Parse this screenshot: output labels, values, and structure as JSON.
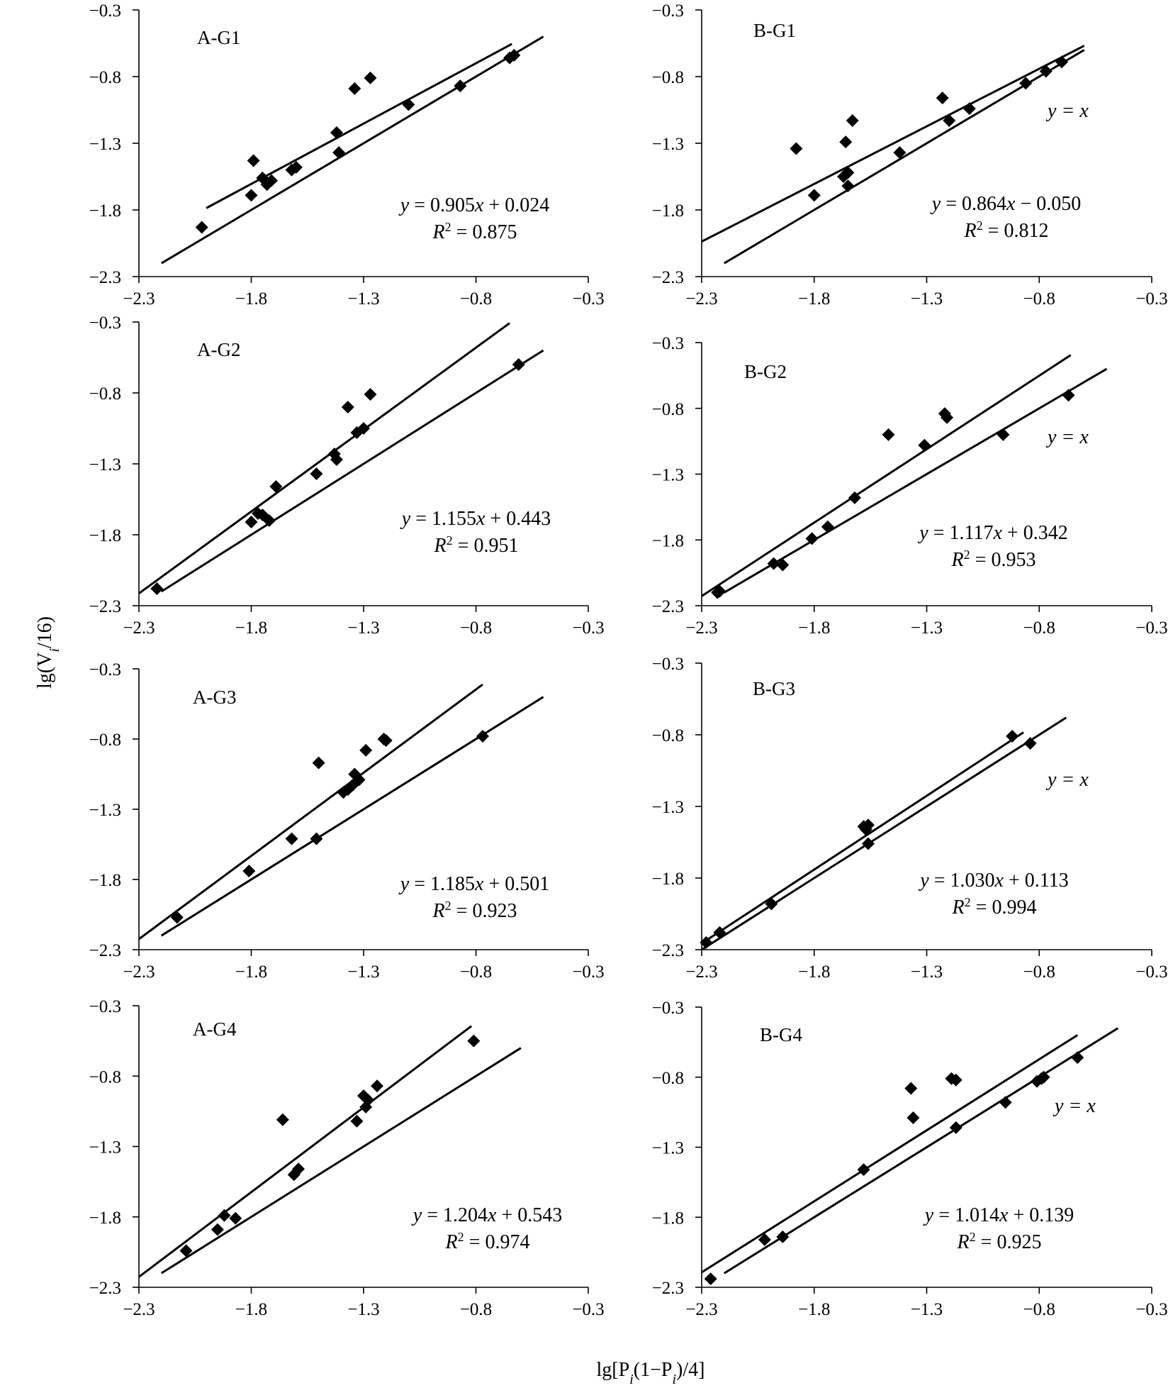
{
  "figure": {
    "ylabel": "lg(V_i/16)",
    "xlabel": "lg[P_i(1−P_i)/4]"
  },
  "chart_data": [
    {
      "type": "scatter",
      "title": "A-G1",
      "xlim": [
        -2.3,
        -0.3
      ],
      "ylim": [
        -2.3,
        -0.3
      ],
      "xticks": [
        "−2.3",
        "−1.8",
        "−1.3",
        "−0.8",
        "−0.3"
      ],
      "yticks": [
        "−0.3",
        "−0.8",
        "−1.3",
        "−1.8",
        "−2.3"
      ],
      "equation": {
        "y": "y",
        "eq": " = 0.905",
        "x": "x",
        "rest": " + 0.024",
        "r2_label": "R",
        "r2_sup": "2",
        "r2_value": " = 0.875"
      },
      "identity_label": "",
      "fit": {
        "slope": 0.905,
        "intercept": 0.024,
        "x_range": [
          -2.0,
          -0.64
        ]
      },
      "identity": {
        "x_range": [
          -2.2,
          -0.5
        ]
      },
      "points": [
        [
          -2.02,
          -1.93
        ],
        [
          -1.8,
          -1.69
        ],
        [
          -1.79,
          -1.43
        ],
        [
          -1.75,
          -1.56
        ],
        [
          -1.73,
          -1.61
        ],
        [
          -1.71,
          -1.58
        ],
        [
          -1.62,
          -1.5
        ],
        [
          -1.6,
          -1.48
        ],
        [
          -1.42,
          -1.22
        ],
        [
          -1.41,
          -1.37
        ],
        [
          -1.34,
          -0.89
        ],
        [
          -1.27,
          -0.81
        ],
        [
          -1.1,
          -1.01
        ],
        [
          -0.87,
          -0.87
        ],
        [
          -0.65,
          -0.66
        ],
        [
          -0.63,
          -0.64
        ]
      ]
    },
    {
      "type": "scatter",
      "title": "B-G1",
      "xlim": [
        -2.3,
        -0.3
      ],
      "ylim": [
        -2.3,
        -0.3
      ],
      "xticks": [
        "−2.3",
        "−1.8",
        "−1.3",
        "−0.8",
        "−0.3"
      ],
      "yticks": [
        "−0.3",
        "−0.8",
        "−1.3",
        "−1.8",
        "−2.3"
      ],
      "equation": {
        "y": "y",
        "eq": " = 0.864",
        "x": "x",
        "rest": " − 0.050",
        "r2_label": "R",
        "r2_sup": "2",
        "r2_value": " = 0.812"
      },
      "identity_label": "y =  x",
      "fit": {
        "slope": 0.864,
        "intercept": -0.05,
        "x_range": [
          -2.3,
          -0.6
        ]
      },
      "identity": {
        "x_range": [
          -2.2,
          -0.6
        ]
      },
      "points": [
        [
          -1.88,
          -1.34
        ],
        [
          -1.8,
          -1.69
        ],
        [
          -1.67,
          -1.55
        ],
        [
          -1.66,
          -1.29
        ],
        [
          -1.65,
          -1.52
        ],
        [
          -1.65,
          -1.62
        ],
        [
          -1.63,
          -1.13
        ],
        [
          -1.42,
          -1.37
        ],
        [
          -1.23,
          -0.96
        ],
        [
          -1.2,
          -1.13
        ],
        [
          -1.11,
          -1.04
        ],
        [
          -0.86,
          -0.85
        ],
        [
          -0.77,
          -0.76
        ],
        [
          -0.7,
          -0.69
        ]
      ]
    },
    {
      "type": "scatter",
      "title": "A-G2",
      "xlim": [
        -2.3,
        -0.3
      ],
      "ylim": [
        -2.3,
        -0.3
      ],
      "xticks": [
        "−2.3",
        "−1.8",
        "−1.3",
        "−0.8",
        "−0.3"
      ],
      "yticks": [
        "−0.3",
        "−0.8",
        "−1.3",
        "−1.8",
        "−2.3"
      ],
      "equation": {
        "y": "y",
        "eq": " = 1.155",
        "x": "x",
        "rest": " + 0.443",
        "r2_label": "R",
        "r2_sup": "2",
        "r2_value": " = 0.951"
      },
      "identity_label": "",
      "fit": {
        "slope": 1.155,
        "intercept": 0.443,
        "x_range": [
          -2.3,
          -0.65
        ]
      },
      "identity": {
        "x_range": [
          -2.2,
          -0.5
        ]
      },
      "points": [
        [
          -2.22,
          -2.18
        ],
        [
          -1.8,
          -1.71
        ],
        [
          -1.77,
          -1.65
        ],
        [
          -1.75,
          -1.66
        ],
        [
          -1.72,
          -1.7
        ],
        [
          -1.69,
          -1.46
        ],
        [
          -1.51,
          -1.37
        ],
        [
          -1.43,
          -1.23
        ],
        [
          -1.42,
          -1.27
        ],
        [
          -1.37,
          -0.9
        ],
        [
          -1.33,
          -1.08
        ],
        [
          -1.3,
          -1.05
        ],
        [
          -1.27,
          -0.81
        ],
        [
          -0.61,
          -0.6
        ]
      ]
    },
    {
      "type": "scatter",
      "title": "B-G2",
      "xlim": [
        -2.3,
        -0.3
      ],
      "ylim": [
        -2.3,
        -0.3
      ],
      "xticks": [
        "−2.3",
        "−1.8",
        "−1.3",
        "−0.8",
        "−0.3"
      ],
      "yticks": [
        "−0.3",
        "−0.8",
        "−1.3",
        "−1.8",
        "−2.3"
      ],
      "equation": {
        "y": "y",
        "eq": " = 1.117",
        "x": "x",
        "rest": " + 0.342",
        "r2_label": "R",
        "r2_sup": "2",
        "r2_value": " = 0.953"
      },
      "identity_label": "y =  x",
      "fit": {
        "slope": 1.117,
        "intercept": 0.342,
        "x_range": [
          -2.3,
          -0.66
        ]
      },
      "identity": {
        "x_range": [
          -2.2,
          -0.5
        ]
      },
      "points": [
        [
          -2.23,
          -2.2
        ],
        [
          -2.22,
          -2.19
        ],
        [
          -1.98,
          -1.98
        ],
        [
          -1.94,
          -1.99
        ],
        [
          -1.81,
          -1.79
        ],
        [
          -1.74,
          -1.7
        ],
        [
          -1.62,
          -1.48
        ],
        [
          -1.47,
          -1.0
        ],
        [
          -1.31,
          -1.08
        ],
        [
          -1.22,
          -0.84
        ],
        [
          -1.21,
          -0.87
        ],
        [
          -0.96,
          -1.0
        ],
        [
          -0.67,
          -0.7
        ]
      ]
    },
    {
      "type": "scatter",
      "title": "A-G3",
      "xlim": [
        -2.3,
        -0.3
      ],
      "ylim": [
        -2.3,
        -0.3
      ],
      "xticks": [
        "−2.3",
        "−1.8",
        "−1.3",
        "−0.8",
        "−0.3"
      ],
      "yticks": [
        "−0.3",
        "−0.8",
        "−1.3",
        "−1.8",
        "−2.3"
      ],
      "equation": {
        "y": "y",
        "eq": " = 1.185",
        "x": "x",
        "rest": " + 0.501",
        "r2_label": "R",
        "r2_sup": "2",
        "r2_value": " = 0.923"
      },
      "identity_label": "",
      "fit": {
        "slope": 1.185,
        "intercept": 0.501,
        "x_range": [
          -2.3,
          -0.77
        ]
      },
      "identity": {
        "x_range": [
          -2.2,
          -0.5
        ]
      },
      "points": [
        [
          -2.13,
          -2.07
        ],
        [
          -1.81,
          -1.74
        ],
        [
          -1.62,
          -1.51
        ],
        [
          -1.51,
          -1.51
        ],
        [
          -1.5,
          -0.97
        ],
        [
          -1.39,
          -1.18
        ],
        [
          -1.37,
          -1.16
        ],
        [
          -1.35,
          -1.13
        ],
        [
          -1.34,
          -1.05
        ],
        [
          -1.32,
          -1.09
        ],
        [
          -1.29,
          -0.88
        ],
        [
          -1.21,
          -0.8
        ],
        [
          -1.2,
          -0.81
        ],
        [
          -0.77,
          -0.78
        ]
      ]
    },
    {
      "type": "scatter",
      "title": "B-G3",
      "xlim": [
        -2.3,
        -0.3
      ],
      "ylim": [
        -2.3,
        -0.3
      ],
      "xticks": [
        "−2.3",
        "−1.8",
        "−1.3",
        "−0.8",
        "−0.3"
      ],
      "yticks": [
        "−0.3",
        "−0.8",
        "−1.3",
        "−1.8",
        "−2.3"
      ],
      "equation": {
        "y": "y",
        "eq": " = 1.030",
        "x": "x",
        "rest": " + 0.113",
        "r2_label": "R",
        "r2_sup": "2",
        "r2_value": " = 0.994"
      },
      "identity_label": "y =  x",
      "fit": {
        "slope": 1.03,
        "intercept": 0.113,
        "x_range": [
          -2.3,
          -0.87
        ]
      },
      "identity": {
        "x_range": [
          -2.3,
          -0.68
        ]
      },
      "points": [
        [
          -2.28,
          -2.25
        ],
        [
          -2.22,
          -2.18
        ],
        [
          -1.99,
          -1.98
        ],
        [
          -1.58,
          -1.44
        ],
        [
          -1.57,
          -1.46
        ],
        [
          -1.56,
          -1.43
        ],
        [
          -1.56,
          -1.56
        ],
        [
          -0.92,
          -0.81
        ],
        [
          -0.84,
          -0.86
        ]
      ]
    },
    {
      "type": "scatter",
      "title": "A-G4",
      "xlim": [
        -2.3,
        -0.3
      ],
      "ylim": [
        -2.3,
        -0.3
      ],
      "xticks": [
        "−2.3",
        "−1.8",
        "−1.3",
        "−0.8",
        "−0.3"
      ],
      "yticks": [
        "−0.3",
        "−0.8",
        "−1.3",
        "−1.8",
        "−2.3"
      ],
      "equation": {
        "y": "y",
        "eq": " = 1.204",
        "x": "x",
        "rest": " + 0.543",
        "r2_label": "R",
        "r2_sup": "2",
        "r2_value": " = 0.974"
      },
      "identity_label": "",
      "fit": {
        "slope": 1.204,
        "intercept": 0.543,
        "x_range": [
          -2.3,
          -0.82
        ]
      },
      "identity": {
        "x_range": [
          -2.2,
          -0.6
        ]
      },
      "points": [
        [
          -2.09,
          -2.04
        ],
        [
          -1.95,
          -1.89
        ],
        [
          -1.92,
          -1.79
        ],
        [
          -1.87,
          -1.81
        ],
        [
          -1.66,
          -1.11
        ],
        [
          -1.61,
          -1.5
        ],
        [
          -1.59,
          -1.46
        ],
        [
          -1.33,
          -1.12
        ],
        [
          -1.3,
          -0.94
        ],
        [
          -1.29,
          -1.02
        ],
        [
          -1.28,
          -0.97
        ],
        [
          -1.24,
          -0.87
        ],
        [
          -0.81,
          -0.55
        ]
      ]
    },
    {
      "type": "scatter",
      "title": "B-G4",
      "xlim": [
        -2.3,
        -0.3
      ],
      "ylim": [
        -2.3,
        -0.3
      ],
      "xticks": [
        "−2.3",
        "−1.8",
        "−1.3",
        "−0.8",
        "−0.3"
      ],
      "yticks": [
        "−0.3",
        "−0.8",
        "−1.3",
        "−1.8",
        "−2.3"
      ],
      "equation": {
        "y": "y",
        "eq": " = 1.014",
        "x": "x",
        "rest": " + 0.139",
        "r2_label": "R",
        "r2_sup": "2",
        "r2_value": " = 0.925"
      },
      "identity_label": "y = x",
      "fit": {
        "slope": 1.014,
        "intercept": 0.139,
        "x_range": [
          -2.3,
          -0.63
        ]
      },
      "identity": {
        "x_range": [
          -2.2,
          -0.45
        ]
      },
      "points": [
        [
          -2.26,
          -2.24
        ],
        [
          -2.02,
          -1.96
        ],
        [
          -1.94,
          -1.94
        ],
        [
          -1.58,
          -1.46
        ],
        [
          -1.37,
          -0.88
        ],
        [
          -1.36,
          -1.09
        ],
        [
          -1.19,
          -0.81
        ],
        [
          -1.17,
          -0.82
        ],
        [
          -1.17,
          -1.16
        ],
        [
          -0.95,
          -0.98
        ],
        [
          -0.81,
          -0.83
        ],
        [
          -0.79,
          -0.81
        ],
        [
          -0.78,
          -0.8
        ],
        [
          -0.63,
          -0.66
        ]
      ]
    }
  ]
}
